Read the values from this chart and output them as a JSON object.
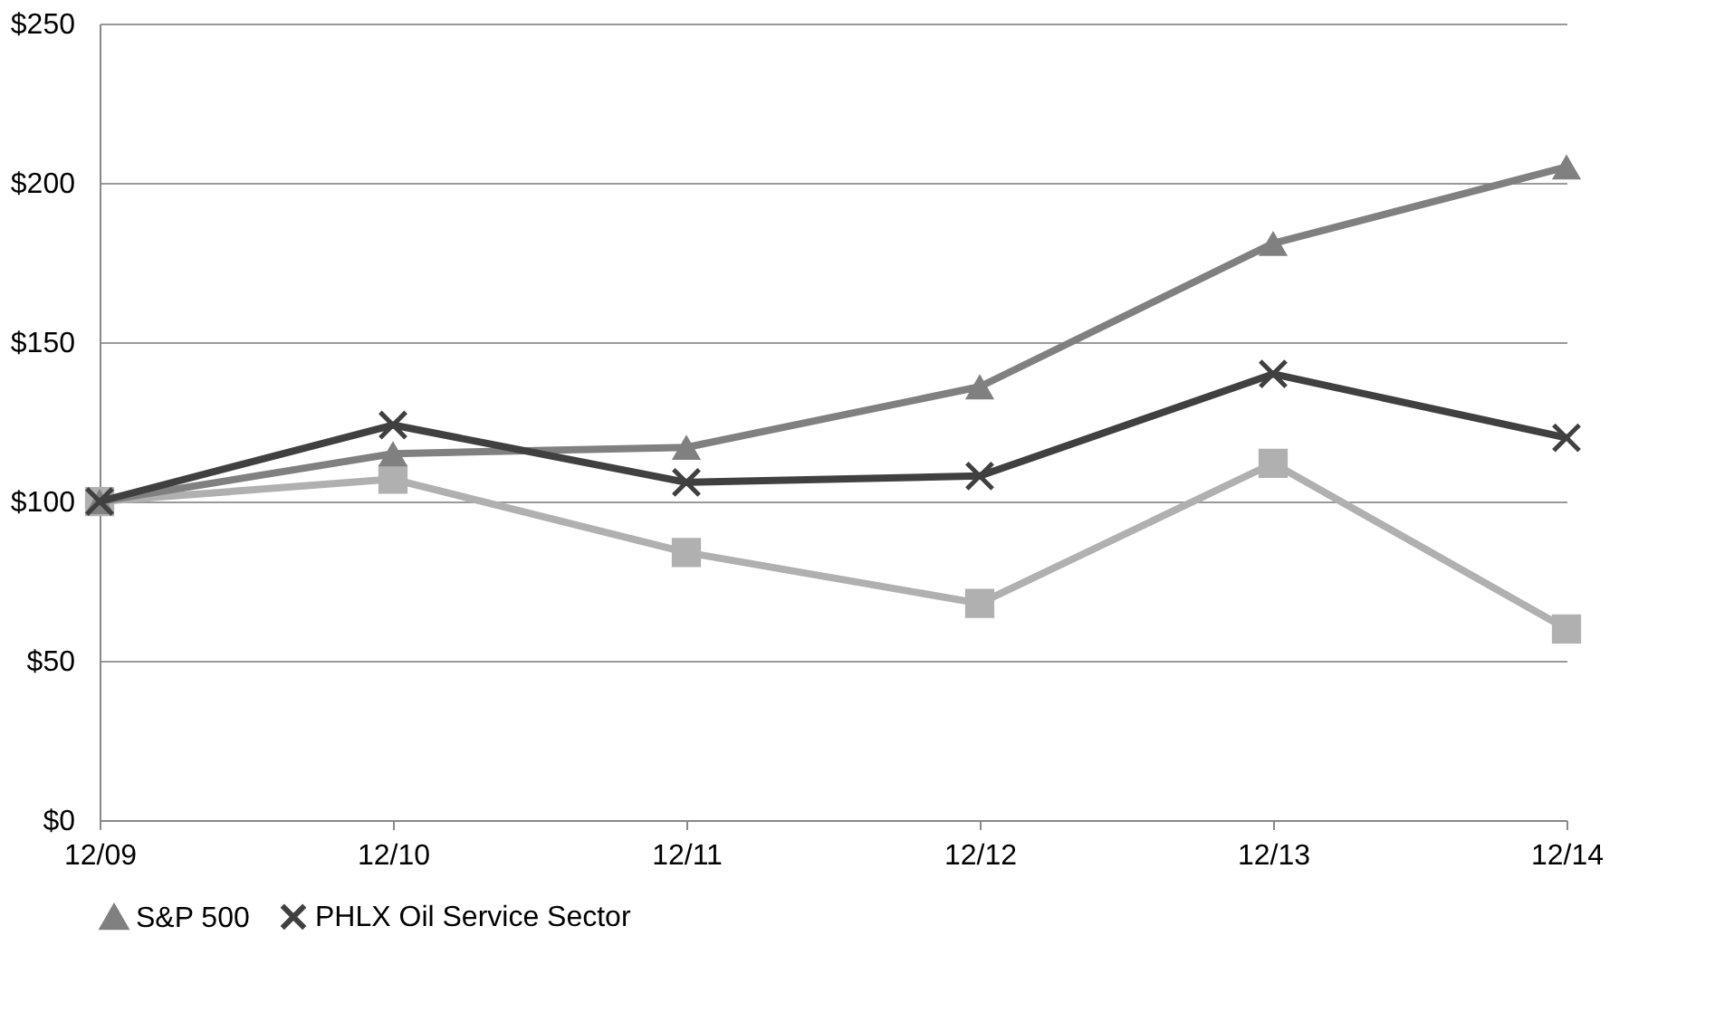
{
  "chart_data": {
    "type": "line",
    "categories": [
      "12/09",
      "12/10",
      "12/11",
      "12/12",
      "12/13",
      "12/14"
    ],
    "series": [
      {
        "color": "#b0b0b0",
        "marker": "square",
        "values": [
          100,
          107,
          84,
          68,
          112,
          60
        ]
      },
      {
        "name": "S&P 500",
        "color": "#808080",
        "marker": "triangle",
        "values": [
          100,
          115,
          117,
          136,
          181,
          205
        ]
      },
      {
        "name": "PHLX Oil Service Sector",
        "color": "#404040",
        "marker": "cross",
        "values": [
          100,
          124,
          106,
          108,
          140,
          120
        ]
      }
    ],
    "ylim": [
      0,
      250
    ],
    "yticks": [
      {
        "value": 0,
        "label": "$0"
      },
      {
        "value": 50,
        "label": "$50"
      },
      {
        "value": 100,
        "label": "$100"
      },
      {
        "value": 150,
        "label": "$150"
      },
      {
        "value": 200,
        "label": "$200"
      },
      {
        "value": 250,
        "label": "$250"
      }
    ],
    "grid": "y",
    "legend": "bottom",
    "line_style": "solid"
  }
}
